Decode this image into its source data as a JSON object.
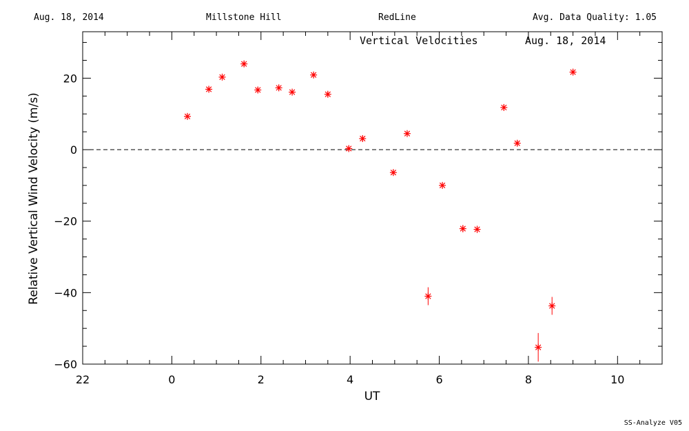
{
  "header": {
    "date": "Aug. 18, 2014",
    "site": "Millstone Hill",
    "instrument": "RedLine",
    "quality": "Avg. Data Quality: 1.05"
  },
  "footer": "SS-Analyze V05",
  "chart_data": {
    "type": "scatter",
    "title": "Vertical Velocities",
    "title_date": "Aug. 18, 2014",
    "xlabel": "UT",
    "ylabel": "Relative Vertical Wind Velocity (m/s)",
    "xlim": [
      -2,
      11
    ],
    "ylim": [
      -60,
      33
    ],
    "xticks": [
      22,
      0,
      2,
      4,
      6,
      8,
      10
    ],
    "yticks": [
      -60,
      -40,
      -20,
      0,
      20
    ],
    "zero_line": true,
    "marker": "asterisk",
    "color": "#ff0000",
    "series": [
      {
        "points": [
          {
            "x": 0.35,
            "y": 9.3,
            "err": 0.8
          },
          {
            "x": 0.83,
            "y": 16.9,
            "err": 0.8
          },
          {
            "x": 1.13,
            "y": 20.3,
            "err": 0.8
          },
          {
            "x": 1.62,
            "y": 24.0,
            "err": 0.8
          },
          {
            "x": 1.93,
            "y": 16.7,
            "err": 0.8
          },
          {
            "x": 2.4,
            "y": 17.3,
            "err": 0.8
          },
          {
            "x": 2.7,
            "y": 16.1,
            "err": 0.8
          },
          {
            "x": 3.18,
            "y": 20.9,
            "err": 0.8
          },
          {
            "x": 3.5,
            "y": 15.5,
            "err": 0.8
          },
          {
            "x": 3.97,
            "y": 0.3,
            "err": 0.8
          },
          {
            "x": 4.28,
            "y": 3.1,
            "err": 0.8
          },
          {
            "x": 4.97,
            "y": -6.4,
            "err": 0.8
          },
          {
            "x": 5.28,
            "y": 4.5,
            "err": 0.8
          },
          {
            "x": 5.75,
            "y": -41.0,
            "err": 2.5
          },
          {
            "x": 6.07,
            "y": -10.0,
            "err": 0.8
          },
          {
            "x": 6.53,
            "y": -22.1,
            "err": 1.0
          },
          {
            "x": 6.85,
            "y": -22.3,
            "err": 1.0
          },
          {
            "x": 7.45,
            "y": 11.8,
            "err": 0.8
          },
          {
            "x": 7.75,
            "y": 1.8,
            "err": 0.8
          },
          {
            "x": 8.22,
            "y": -55.3,
            "err": 4.0
          },
          {
            "x": 8.53,
            "y": -43.7,
            "err": 2.5
          },
          {
            "x": 9.0,
            "y": 21.7,
            "err": 0.8
          }
        ]
      }
    ]
  }
}
